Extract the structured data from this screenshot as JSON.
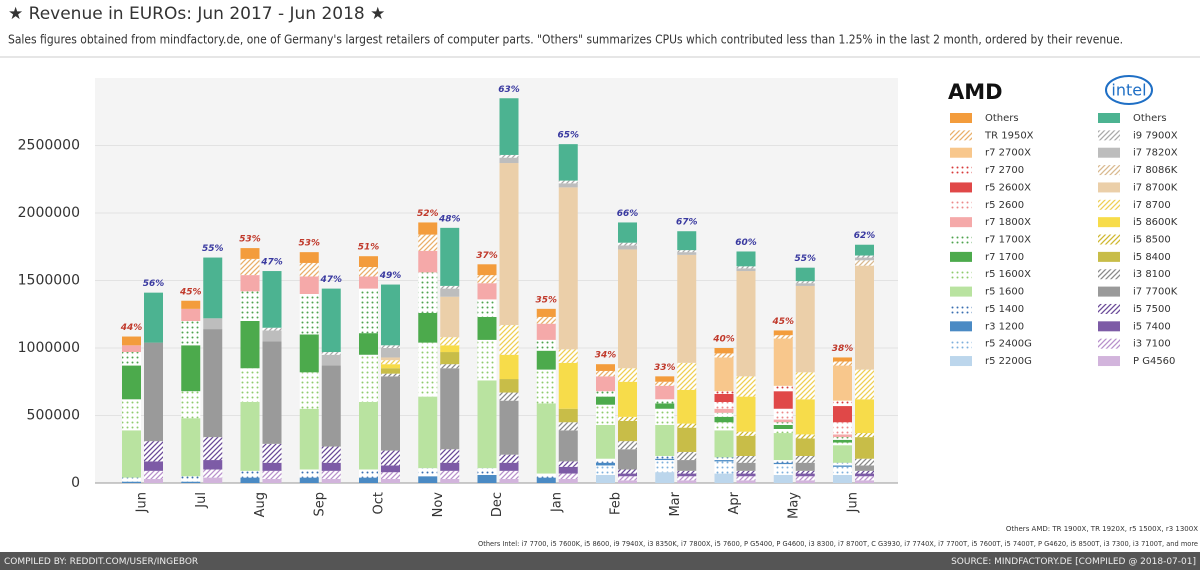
{
  "chart_data": {
    "type": "stacked-bar-pair",
    "title": "★ Revenue in EUROs: Jun 2017 - Jun 2018 ★",
    "subtitle": "Sales figures obtained from mindfactory.de, one of Germany's largest retailers of computer parts. \"Others\" summarizes CPUs which contributed less than 1.25% in the last 2 month, ordered by their revenue.",
    "categories": [
      "Jun",
      "Jul",
      "Aug",
      "Sep",
      "Oct",
      "Nov",
      "Dec",
      "Jan",
      "Feb",
      "Mar",
      "Apr",
      "May",
      "Jun"
    ],
    "ylim": [
      0,
      3000000
    ],
    "yticks": [
      0,
      500000,
      1000000,
      1500000,
      2000000,
      2500000
    ],
    "grid": true,
    "groups": [
      {
        "name": "AMD",
        "label_color": "#c0392b",
        "share": {
          "values": [
            44,
            45,
            53,
            53,
            51,
            52,
            37,
            35,
            34,
            33,
            40,
            45,
            38
          ],
          "value_labels": [
            "44%",
            "45%",
            "53%",
            "53%",
            "51%",
            "52%",
            "37%",
            "35%",
            "34%",
            "33%",
            "40%",
            "45%",
            "38%"
          ]
        },
        "series": [
          {
            "name": "Others",
            "color": "#f39c3c",
            "fill": "solid",
            "values": [
              65000,
              60000,
              80000,
              80000,
              80000,
              90000,
              80000,
              60000,
              50000,
              40000,
              40000,
              35000,
              30000
            ]
          },
          {
            "name": "TR 1950X",
            "color": "#e9b06a",
            "fill": "hatch",
            "values": [
              0,
              0,
              120000,
              100000,
              70000,
              120000,
              60000,
              50000,
              40000,
              30000,
              30000,
              25000,
              30000
            ]
          },
          {
            "name": "r7 2700X",
            "color": "#f8c78c",
            "fill": "solid",
            "values": [
              0,
              0,
              0,
              0,
              0,
              0,
              0,
              0,
              0,
              0,
              250000,
              350000,
              260000
            ]
          },
          {
            "name": "r7 2700",
            "color": "#d83a3a",
            "fill": "dots",
            "values": [
              0,
              0,
              0,
              0,
              0,
              0,
              0,
              0,
              0,
              0,
              20000,
              40000,
              40000
            ]
          },
          {
            "name": "r5 2600X",
            "color": "#e04848",
            "fill": "solid",
            "values": [
              0,
              0,
              0,
              0,
              0,
              0,
              0,
              0,
              0,
              0,
              60000,
              130000,
              120000
            ]
          },
          {
            "name": "r5 2600",
            "color": "#ec8a8a",
            "fill": "dots",
            "values": [
              0,
              0,
              0,
              0,
              0,
              0,
              0,
              0,
              0,
              0,
              50000,
              80000,
              90000
            ]
          },
          {
            "name": "r7 1800X",
            "color": "#f5a9a9",
            "fill": "solid",
            "values": [
              50000,
              90000,
              120000,
              130000,
              90000,
              160000,
              120000,
              120000,
              110000,
              100000,
              30000,
              20000,
              20000
            ]
          },
          {
            "name": "r7 1700X",
            "color": "#4fa34f",
            "fill": "dots",
            "values": [
              100000,
              180000,
              220000,
              300000,
              330000,
              300000,
              130000,
              80000,
              40000,
              30000,
              30000,
              20000,
              20000
            ]
          },
          {
            "name": "r7 1700",
            "color": "#4caa4c",
            "fill": "solid",
            "values": [
              250000,
              340000,
              350000,
              280000,
              160000,
              220000,
              170000,
              140000,
              60000,
              40000,
              40000,
              30000,
              20000
            ]
          },
          {
            "name": "r5 1600X",
            "color": "#8fcc6e",
            "fill": "dots",
            "values": [
              230000,
              200000,
              250000,
              270000,
              350000,
              400000,
              300000,
              250000,
              150000,
              120000,
              60000,
              30000,
              20000
            ]
          },
          {
            "name": "r5 1600",
            "color": "#b9e3a0",
            "fill": "solid",
            "values": [
              350000,
              430000,
              510000,
              450000,
              500000,
              530000,
              650000,
              520000,
              250000,
              230000,
              200000,
              200000,
              130000
            ]
          },
          {
            "name": "r5 1400",
            "color": "#3a6fb0",
            "fill": "dots",
            "values": [
              30000,
              40000,
              50000,
              60000,
              60000,
              60000,
              50000,
              30000,
              30000,
              20000,
              20000,
              20000,
              20000
            ]
          },
          {
            "name": "r3 1200",
            "color": "#4a8ac4",
            "fill": "solid",
            "values": [
              10000,
              10000,
              40000,
              40000,
              40000,
              50000,
              60000,
              40000,
              20000,
              10000,
              10000,
              10000,
              10000
            ]
          },
          {
            "name": "r5 2400G",
            "color": "#7fb0dc",
            "fill": "dots",
            "values": [
              0,
              0,
              0,
              0,
              0,
              0,
              0,
              0,
              70000,
              90000,
              90000,
              80000,
              60000
            ]
          },
          {
            "name": "r5 2200G",
            "color": "#bcd6ec",
            "fill": "solid",
            "values": [
              0,
              0,
              0,
              0,
              0,
              0,
              0,
              0,
              60000,
              80000,
              70000,
              60000,
              60000
            ]
          }
        ]
      },
      {
        "name": "intel",
        "label_color": "#3a3aa0",
        "share": {
          "values": [
            56,
            55,
            47,
            47,
            49,
            48,
            63,
            65,
            66,
            67,
            60,
            55,
            62
          ],
          "value_labels": [
            "56%",
            "55%",
            "47%",
            "47%",
            "49%",
            "48%",
            "63%",
            "65%",
            "66%",
            "67%",
            "60%",
            "55%",
            "62%"
          ]
        },
        "series": [
          {
            "name": "Others",
            "color": "#4cb391",
            "fill": "solid",
            "values": [
              370000,
              450000,
              420000,
              470000,
              450000,
              430000,
              420000,
              270000,
              150000,
              140000,
              110000,
              100000,
              80000
            ]
          },
          {
            "name": "i9 7900X",
            "color": "#aaaaaa",
            "fill": "hatch",
            "values": [
              0,
              0,
              20000,
              20000,
              20000,
              20000,
              20000,
              20000,
              20000,
              15000,
              15000,
              15000,
              15000
            ]
          },
          {
            "name": "i7 7820X",
            "color": "#bdbdbd",
            "fill": "solid",
            "values": [
              0,
              80000,
              80000,
              80000,
              70000,
              60000,
              40000,
              30000,
              30000,
              20000,
              20000,
              20000,
              20000
            ]
          },
          {
            "name": "i7 8086K",
            "color": "#d9b98f",
            "fill": "hatch",
            "values": [
              0,
              0,
              0,
              0,
              0,
              0,
              0,
              0,
              0,
              0,
              0,
              0,
              40000
            ]
          },
          {
            "name": "i7 8700K",
            "color": "#ebcfa9",
            "fill": "solid",
            "values": [
              0,
              0,
              0,
              0,
              20000,
              300000,
              1200000,
              1200000,
              880000,
              800000,
              780000,
              640000,
              770000
            ]
          },
          {
            "name": "i7 8700",
            "color": "#efcf55",
            "fill": "hatch",
            "values": [
              0,
              0,
              0,
              0,
              30000,
              60000,
              220000,
              100000,
              100000,
              200000,
              150000,
              200000,
              220000
            ]
          },
          {
            "name": "i5 8600K",
            "color": "#f7dc4a",
            "fill": "solid",
            "values": [
              0,
              0,
              0,
              0,
              30000,
              50000,
              180000,
              340000,
              260000,
              250000,
              260000,
              260000,
              250000
            ]
          },
          {
            "name": "i5 8500",
            "color": "#d0b830",
            "fill": "hatch",
            "values": [
              0,
              0,
              0,
              0,
              0,
              0,
              0,
              0,
              30000,
              30000,
              30000,
              30000,
              30000
            ]
          },
          {
            "name": "i5 8400",
            "color": "#c8bd48",
            "fill": "solid",
            "values": [
              0,
              0,
              0,
              0,
              40000,
              90000,
              100000,
              100000,
              150000,
              180000,
              150000,
              130000,
              160000
            ]
          },
          {
            "name": "i3 8100",
            "color": "#8a8a8a",
            "fill": "hatch",
            "values": [
              0,
              0,
              0,
              0,
              20000,
              30000,
              60000,
              60000,
              60000,
              60000,
              50000,
              50000,
              50000
            ]
          },
          {
            "name": "i7 7700K",
            "color": "#9a9a9a",
            "fill": "solid",
            "values": [
              730000,
              800000,
              760000,
              600000,
              550000,
              600000,
              400000,
              230000,
              150000,
              80000,
              60000,
              60000,
              40000
            ]
          },
          {
            "name": "i5 7500",
            "color": "#6a4a98",
            "fill": "hatch",
            "values": [
              150000,
              170000,
              140000,
              120000,
              110000,
              100000,
              60000,
              40000,
              30000,
              20000,
              20000,
              20000,
              20000
            ]
          },
          {
            "name": "i5 7400",
            "color": "#7d5ba6",
            "fill": "solid",
            "values": [
              70000,
              70000,
              60000,
              60000,
              50000,
              60000,
              60000,
              50000,
              20000,
              20000,
              20000,
              20000,
              20000
            ]
          },
          {
            "name": "i3 7100",
            "color": "#b890cc",
            "fill": "hatch",
            "values": [
              60000,
              60000,
              60000,
              60000,
              50000,
              60000,
              60000,
              40000,
              30000,
              30000,
              30000,
              30000,
              30000
            ]
          },
          {
            "name": "P G4560",
            "color": "#d2b4dc",
            "fill": "solid",
            "values": [
              30000,
              40000,
              30000,
              30000,
              30000,
              30000,
              30000,
              30000,
              20000,
              20000,
              20000,
              20000,
              20000
            ]
          }
        ]
      }
    ],
    "notes": [
      "Others AMD: TR 1900X, TR 1920X, r5 1500X, r3 1300X",
      "Others Intel: i7 7700, i5 7600K, i5 8600, i9 7940X, i3 8350K, i7 7800X, i5 7600, P G5400, P G4600, i3 8300, i7 8700T, C G3930, i7 7740X, i7 7700T, i5 7600T, i5 7400T, P G4620, i5 8500T, i3 7300, i3 7100T, and more"
    ],
    "footer_left": "COMPILED BY: REDDIT.COM/USER/INGEBOR",
    "footer_right": "SOURCE: MINDFACTORY.DE [COMPILED @ 2018-07-01]"
  }
}
